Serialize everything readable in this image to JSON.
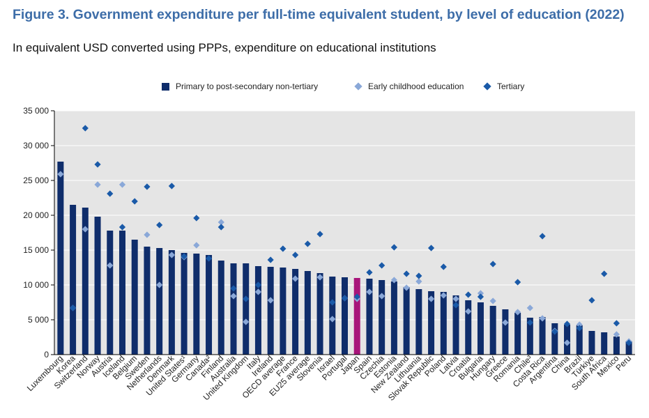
{
  "title": "Figure 3. Government expenditure per full-time equivalent student, by level of education (2022)",
  "subtitle": "In equivalent USD converted using PPPs, expenditure on educational institutions",
  "colors": {
    "title": "#3d6da8",
    "bar": "#0f2d6b",
    "highlight": "#a8157a",
    "early_childhood": "#8aa8d8",
    "tertiary": "#1a5aa8",
    "plot_background": "#e5e5e5",
    "grid": "#ffffff"
  },
  "legend": {
    "primary": "Primary to post-secondary non-tertiary",
    "early": "Early childhood education",
    "tertiary": "Tertiary"
  },
  "chart_data": {
    "type": "bar",
    "title": "Figure 3. Government expenditure per full-time equivalent student, by level of education (2022)",
    "subtitle": "In equivalent USD converted using PPPs, expenditure on educational institutions",
    "xlabel": "",
    "ylabel": "",
    "ylim": [
      0,
      35000
    ],
    "yticks": [
      0,
      5000,
      10000,
      15000,
      20000,
      25000,
      30000,
      35000
    ],
    "ytick_labels": [
      "0",
      "5 000",
      "10 000",
      "15 000",
      "20 000",
      "25 000",
      "30 000",
      "35 000"
    ],
    "grid": true,
    "legend_position": "top-center",
    "highlight_category": "Japan",
    "categories": [
      "Luxembourg",
      "Korea",
      "Switzerland",
      "Norway",
      "Austria",
      "Iceland",
      "Belgium",
      "Sweden",
      "Netherlands",
      "Denmark",
      "United States¹",
      "Germany",
      "Canada²",
      "Finland",
      "Australia",
      "United Kingdom",
      "Italy",
      "Ireland",
      "OECD average",
      "France",
      "EU25 average",
      "Slovenia",
      "Israel",
      "Portugal",
      "Japan",
      "Spain",
      "Czechia",
      "Estonia",
      "New Zealand",
      "Lithuania",
      "Slovak Republic",
      "Poland",
      "Latvia",
      "Croatia",
      "Bulgaria",
      "Hungary",
      "Greece",
      "Romania",
      "Chile³",
      "Costa Rica",
      "Argentina",
      "China",
      "Brazil",
      "Türkiye",
      "South Africa",
      "Mexico",
      "Peru"
    ],
    "series": [
      {
        "name": "Primary to post-secondary non-tertiary",
        "marker": "bar",
        "values": [
          27700,
          21500,
          21100,
          19800,
          17800,
          17800,
          16500,
          15500,
          15300,
          15000,
          14600,
          14500,
          14300,
          13500,
          13100,
          13100,
          12700,
          12600,
          12500,
          12300,
          12000,
          11700,
          11200,
          11100,
          11000,
          10900,
          10700,
          10500,
          9700,
          9400,
          9100,
          9000,
          8500,
          7800,
          7500,
          7000,
          6500,
          6000,
          5300,
          5400,
          4500,
          4300,
          4200,
          3400,
          3200,
          2600,
          1900
        ]
      },
      {
        "name": "Early childhood education",
        "marker": "diamond",
        "values": [
          25900,
          6700,
          18000,
          24400,
          12800,
          24400,
          null,
          17200,
          10000,
          14300,
          14000,
          15700,
          null,
          19000,
          8400,
          4700,
          9000,
          7800,
          null,
          10900,
          null,
          11100,
          5100,
          8100,
          8000,
          9000,
          8400,
          10700,
          9600,
          10500,
          8000,
          8500,
          8000,
          6200,
          8800,
          7700,
          4600,
          6100,
          6700,
          5200,
          3400,
          1700,
          4300,
          null,
          null,
          2900,
          1900
        ]
      },
      {
        "name": "Tertiary",
        "marker": "diamond",
        "values": [
          null,
          6700,
          32500,
          27300,
          23100,
          18300,
          22000,
          24100,
          18600,
          24200,
          14100,
          19600,
          13800,
          18300,
          9500,
          8000,
          10000,
          13600,
          15200,
          14300,
          15900,
          17300,
          7500,
          8100,
          8300,
          11800,
          12800,
          15400,
          11600,
          11300,
          15300,
          12600,
          7100,
          8600,
          8300,
          13000,
          null,
          10400,
          4600,
          17000,
          3300,
          4400,
          3800,
          7800,
          11600,
          4500,
          1700
        ]
      }
    ]
  }
}
